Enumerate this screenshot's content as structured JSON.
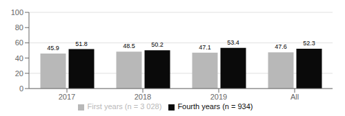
{
  "chart_data": {
    "type": "bar",
    "categories": [
      "2017",
      "2018",
      "2019",
      "All"
    ],
    "series": [
      {
        "name": "First years (n = 3 028)",
        "color": "#b8b8b8",
        "values": [
          45.9,
          48.5,
          47.1,
          47.6
        ]
      },
      {
        "name": "Fourth years (n = 934)",
        "color": "#0a0a0a",
        "values": [
          51.8,
          50.2,
          53.4,
          52.3
        ]
      }
    ],
    "ylim": [
      0,
      100
    ],
    "yticks": [
      0,
      20,
      40,
      60,
      80,
      100
    ],
    "grid": true,
    "legend": "bottom",
    "data_labels": true
  }
}
